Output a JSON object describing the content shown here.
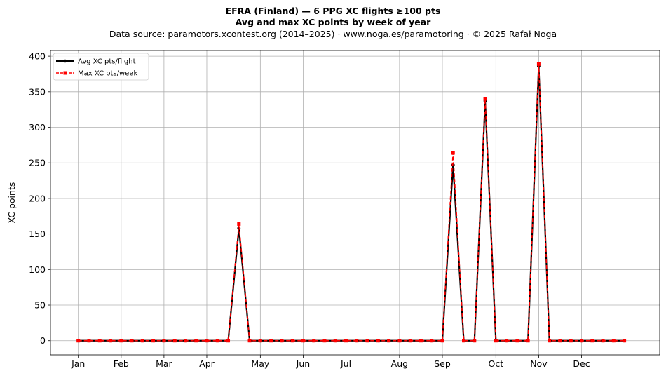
{
  "header": {
    "title": "EFRA (Finland)  —  6 PPG XC flights ≥100 pts",
    "subtitle": "Avg and max XC points by week of year",
    "source": "Data source: paramotors.xcontest.org (2014–2025)  ·  www.noga.es/paramotoring  ·  © 2025 Rafał Noga"
  },
  "chart_data": {
    "type": "line",
    "title": "EFRA (Finland)  —  6 PPG XC flights ≥100 pts",
    "subtitle": "Avg and max XC points by week of year",
    "xlabel": "",
    "ylabel": "XC points",
    "x": [
      1,
      2,
      3,
      4,
      5,
      6,
      7,
      8,
      9,
      10,
      11,
      12,
      13,
      14,
      15,
      16,
      17,
      18,
      19,
      20,
      21,
      22,
      23,
      24,
      25,
      26,
      27,
      28,
      29,
      30,
      31,
      32,
      33,
      34,
      35,
      36,
      37,
      38,
      39,
      40,
      41,
      42,
      43,
      44,
      45,
      46,
      47,
      48,
      49,
      50,
      51,
      52
    ],
    "xlim": [
      -1.6,
      55.3
    ],
    "ylim": [
      -20,
      408
    ],
    "yticks": [
      0,
      50,
      100,
      150,
      200,
      250,
      300,
      350,
      400
    ],
    "month_ticks": [
      {
        "label": "Jan",
        "week": 1
      },
      {
        "label": "Feb",
        "week": 5
      },
      {
        "label": "Mar",
        "week": 9
      },
      {
        "label": "Apr",
        "week": 13
      },
      {
        "label": "May",
        "week": 18
      },
      {
        "label": "Jun",
        "week": 22
      },
      {
        "label": "Jul",
        "week": 26
      },
      {
        "label": "Aug",
        "week": 31
      },
      {
        "label": "Sep",
        "week": 35
      },
      {
        "label": "Oct",
        "week": 40
      },
      {
        "label": "Nov",
        "week": 44
      },
      {
        "label": "Dec",
        "week": 48
      }
    ],
    "grid": true,
    "legend_position": "top-left",
    "series": [
      {
        "name": "Avg XC pts/flight",
        "color": "#000000",
        "style": "solid",
        "marker": "circle",
        "values": [
          0,
          0,
          0,
          0,
          0,
          0,
          0,
          0,
          0,
          0,
          0,
          0,
          0,
          0,
          0,
          158,
          0,
          0,
          0,
          0,
          0,
          0,
          0,
          0,
          0,
          0,
          0,
          0,
          0,
          0,
          0,
          0,
          0,
          0,
          0,
          247,
          0,
          0,
          337,
          0,
          0,
          0,
          0,
          386,
          0,
          0,
          0,
          0,
          0,
          0,
          0,
          0
        ]
      },
      {
        "name": "Max XC pts/week",
        "color": "#ff0000",
        "style": "dashed",
        "marker": "square",
        "values": [
          0,
          0,
          0,
          0,
          0,
          0,
          0,
          0,
          0,
          0,
          0,
          0,
          0,
          0,
          0,
          164,
          0,
          0,
          0,
          0,
          0,
          0,
          0,
          0,
          0,
          0,
          0,
          0,
          0,
          0,
          0,
          0,
          0,
          0,
          0,
          264,
          0,
          0,
          340,
          0,
          0,
          0,
          0,
          389,
          0,
          0,
          0,
          0,
          0,
          0,
          0,
          0
        ]
      }
    ]
  }
}
